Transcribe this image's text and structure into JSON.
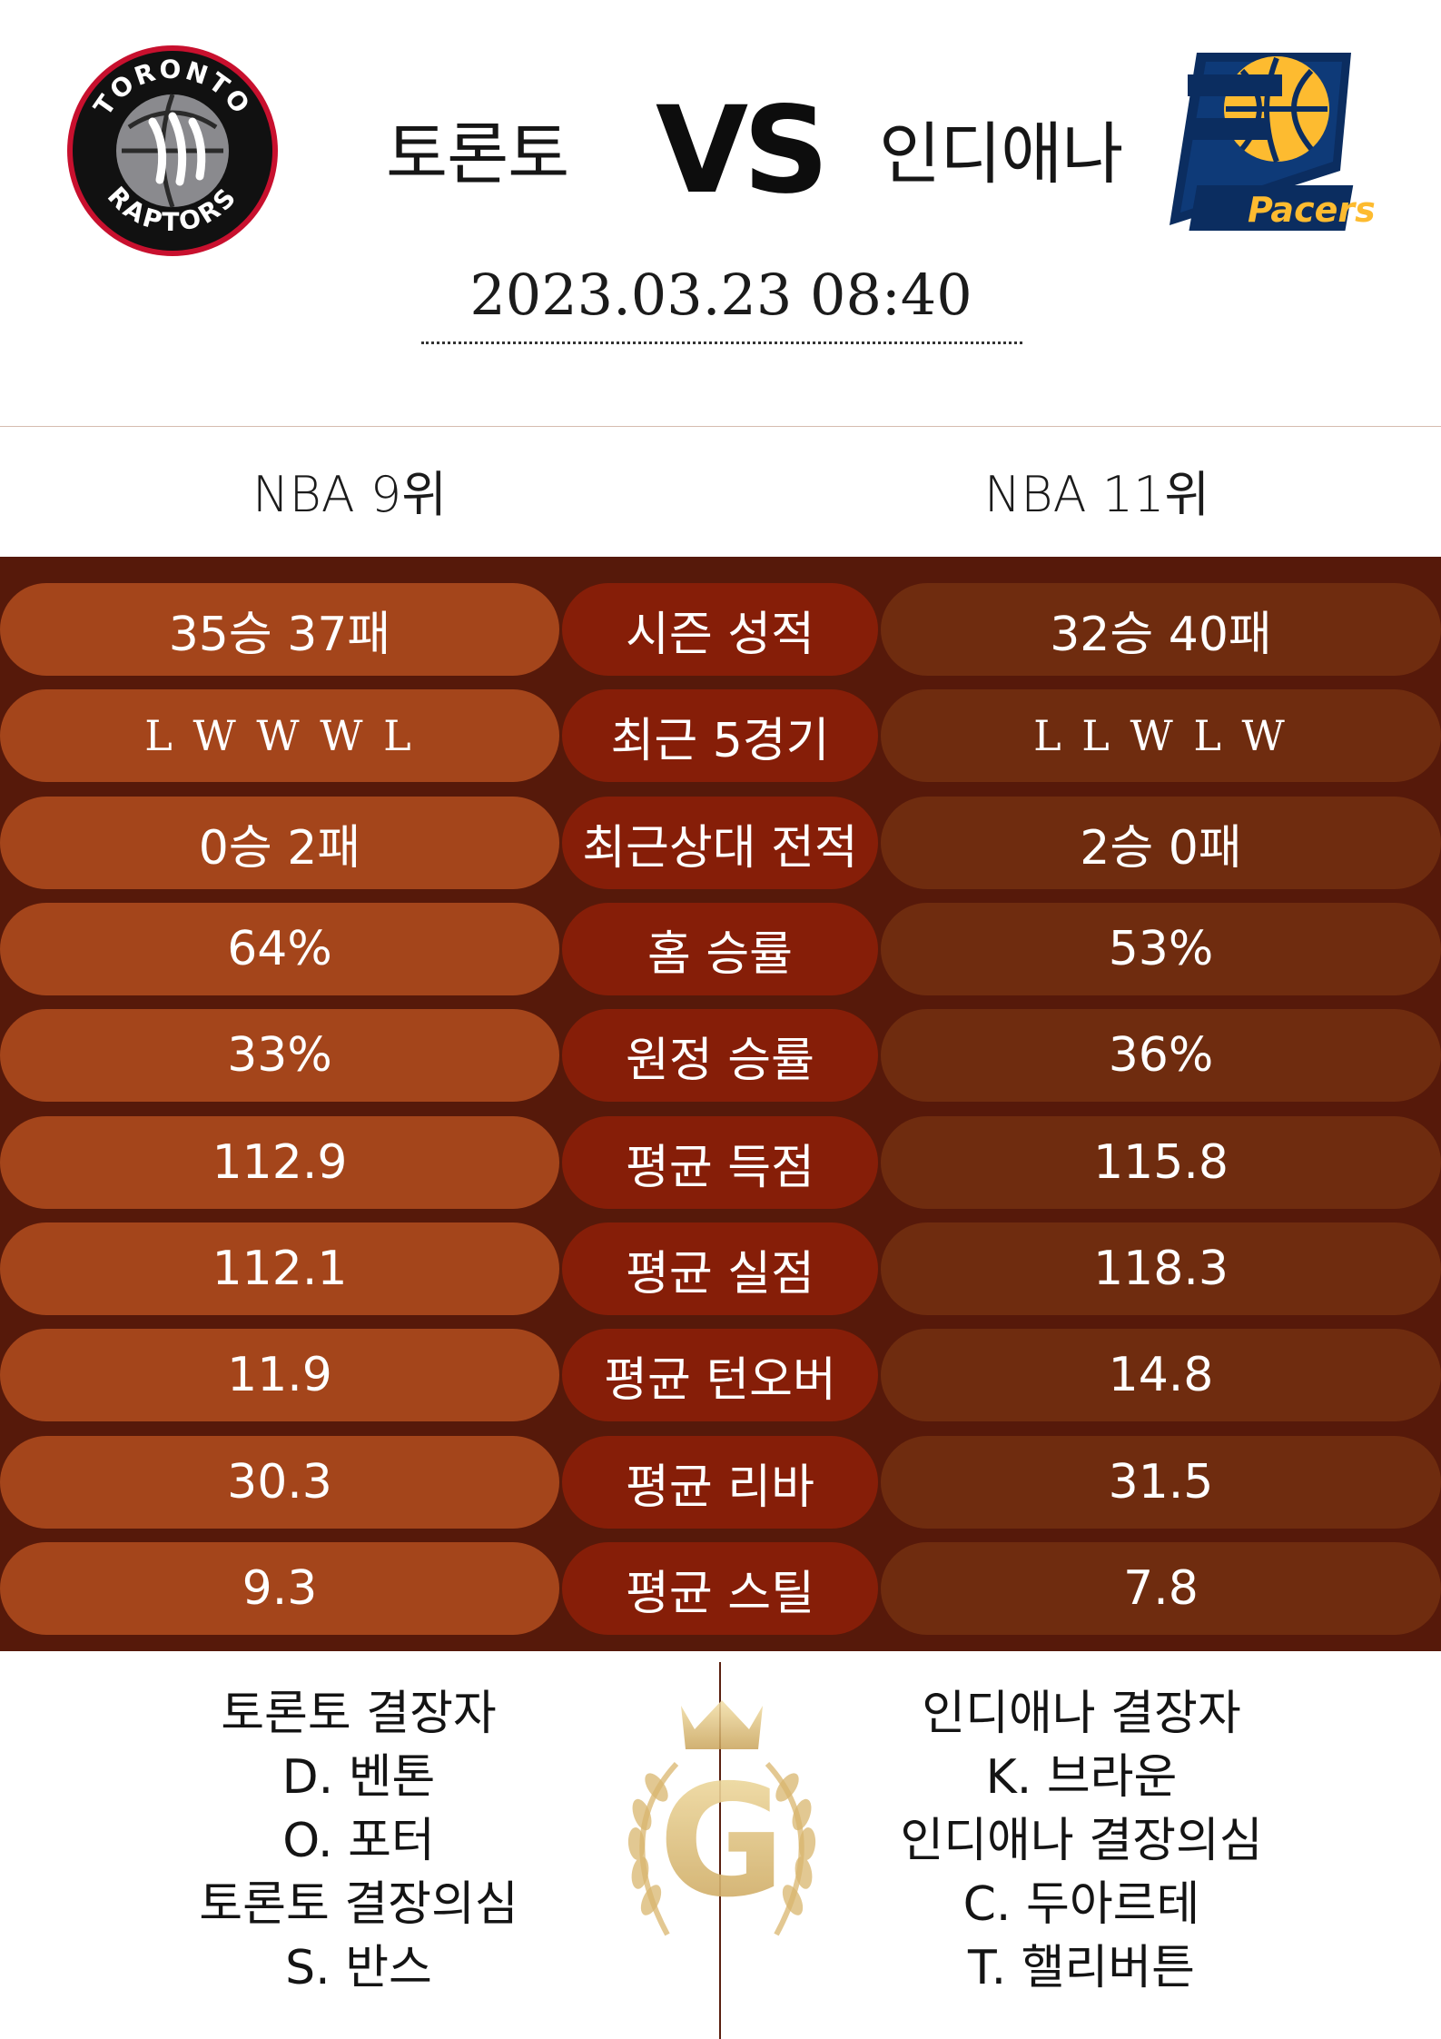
{
  "header": {
    "home_team": "토론토",
    "away_team": "인디애나",
    "vs": "VS",
    "datetime": "2023.03.23  08:40"
  },
  "logos": {
    "home_ring_top": "TORONTO",
    "home_ring_bottom": "RAPTORS",
    "away_wordmark": "Pacers"
  },
  "ranks": {
    "home": "NBA 9위",
    "away": "NBA 11위"
  },
  "stats": [
    {
      "label": "시즌 성적",
      "home": "35승 37패",
      "away": "32승 40패"
    },
    {
      "label": "최근 5경기",
      "home": "L W W W L",
      "away": "L L W L W"
    },
    {
      "label": "최근상대 전적",
      "home": "0승 2패",
      "away": "2승 0패"
    },
    {
      "label": "홈 승률",
      "home": "64%",
      "away": "53%"
    },
    {
      "label": "원정 승률",
      "home": "33%",
      "away": "36%"
    },
    {
      "label": "평균 득점",
      "home": "112.9",
      "away": "115.8"
    },
    {
      "label": "평균 실점",
      "home": "112.1",
      "away": "118.3"
    },
    {
      "label": "평균 턴오버",
      "home": "11.9",
      "away": "14.8"
    },
    {
      "label": "평균 리바",
      "home": "30.3",
      "away": "31.5"
    },
    {
      "label": "평균 스틸",
      "home": "9.3",
      "away": "7.8"
    }
  ],
  "absences": {
    "home": [
      "토론토 결장자",
      "D. 벤톤",
      "O. 포터",
      "토론토 결장의심",
      "S. 반스"
    ],
    "away": [
      "인디애나 결장자",
      "K. 브라운",
      "인디애나 결장의심",
      "C. 두아르테",
      "T. 핼리버튼"
    ]
  },
  "emblem_letter": "G",
  "colors": {
    "home_pill": "#a4451b",
    "mid_pill": "#861e08",
    "away_pill": "#6f2c0f",
    "stats_bg": "#56190a",
    "gold": "#d9b66e"
  }
}
